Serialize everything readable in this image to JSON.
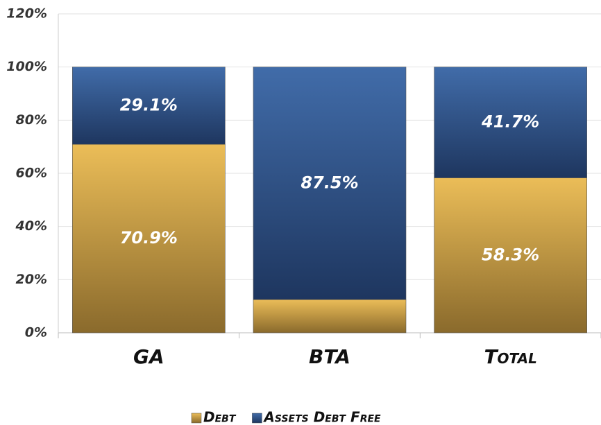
{
  "chart_data": {
    "type": "stacked_bar",
    "categories": [
      "GA",
      "BTA",
      "Total"
    ],
    "series": [
      {
        "name": "Debt",
        "color": "#c9a24a",
        "values": [
          70.9,
          12.5,
          58.3
        ],
        "value_labels": [
          "70.9%",
          null,
          "58.3%"
        ]
      },
      {
        "name": "Assets Debt Free",
        "color": "#2f5590",
        "values": [
          29.1,
          87.5,
          41.7
        ],
        "value_labels": [
          "29.1%",
          "87.5%",
          "41.7%"
        ]
      }
    ],
    "ylim": [
      0,
      120
    ],
    "yticks": [
      {
        "value": 0,
        "label": "0%"
      },
      {
        "value": 20,
        "label": "20%"
      },
      {
        "value": 40,
        "label": "40%"
      },
      {
        "value": 60,
        "label": "60%"
      },
      {
        "value": 80,
        "label": "80%"
      },
      {
        "value": 100,
        "label": "100%"
      },
      {
        "value": 120,
        "label": "120%"
      }
    ],
    "grid": true,
    "legend": "bottom"
  }
}
